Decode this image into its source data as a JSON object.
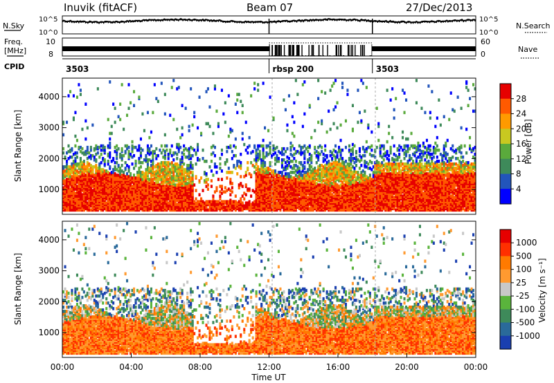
{
  "header": {
    "station": "Inuvik (fitACF)",
    "beam": "Beam 07",
    "date": "27/Dec/2013"
  },
  "panels": {
    "nsky_label": "N.Sky",
    "nsky_ticks": [
      "10^5",
      "10^0"
    ],
    "nsearch_label": "N.Search",
    "nsearch_ticks": [
      "10^5",
      "10^0"
    ],
    "freq_label": "Freq.",
    "freq_unit": "[MHz]",
    "freq_ticks": [
      "10",
      "8"
    ],
    "nave_label": "Nave",
    "nave_ticks": [
      "60",
      "0"
    ],
    "cpid_label": "CPID",
    "cpid_segments": [
      {
        "label": "3503",
        "start_hour": 0,
        "end_hour": 12
      },
      {
        "label": "rbsp 200",
        "start_hour": 12,
        "end_hour": 18
      },
      {
        "label": "3503",
        "start_hour": 18,
        "end_hour": 24
      }
    ]
  },
  "chart_data": [
    {
      "type": "heatmap",
      "name": "power-panel",
      "ylabel": "Slant Range [km]",
      "yticks": [
        "4000",
        "3000",
        "2000",
        "1000"
      ],
      "ylim": [
        200,
        4600
      ],
      "xlim": [
        0,
        24
      ],
      "colorbar_label": "Power [dB]",
      "colorbar_ticks": [
        "28",
        "24",
        "20",
        "16",
        "12",
        "8",
        "4"
      ],
      "colors": [
        "#0000ff",
        "#2255bb",
        "#3e8a5a",
        "#5aaa3c",
        "#c8c820",
        "#ff9a00",
        "#ff5a00",
        "#e60000"
      ]
    },
    {
      "type": "heatmap",
      "name": "velocity-panel",
      "ylabel": "Slant Range [km]",
      "yticks": [
        "4000",
        "3000",
        "2000",
        "1000"
      ],
      "ylim": [
        200,
        4600
      ],
      "xlim": [
        0,
        24
      ],
      "xticks": [
        "00:00",
        "04:00",
        "08:00",
        "12:00",
        "16:00",
        "20:00",
        "00:00"
      ],
      "xlabel": "Time UT",
      "colorbar_label": "Velocity [m s⁻¹]",
      "colorbar_ticks": [
        "1000",
        "500",
        "100",
        "25",
        "-25",
        "-100",
        "-500",
        "-1000"
      ],
      "colors": [
        "#1a3fb0",
        "#2a6a9a",
        "#3e8a5a",
        "#5ab43c",
        "#c8c8c8",
        "#ff9a30",
        "#ff7a00",
        "#ff3000",
        "#e60000"
      ]
    }
  ]
}
